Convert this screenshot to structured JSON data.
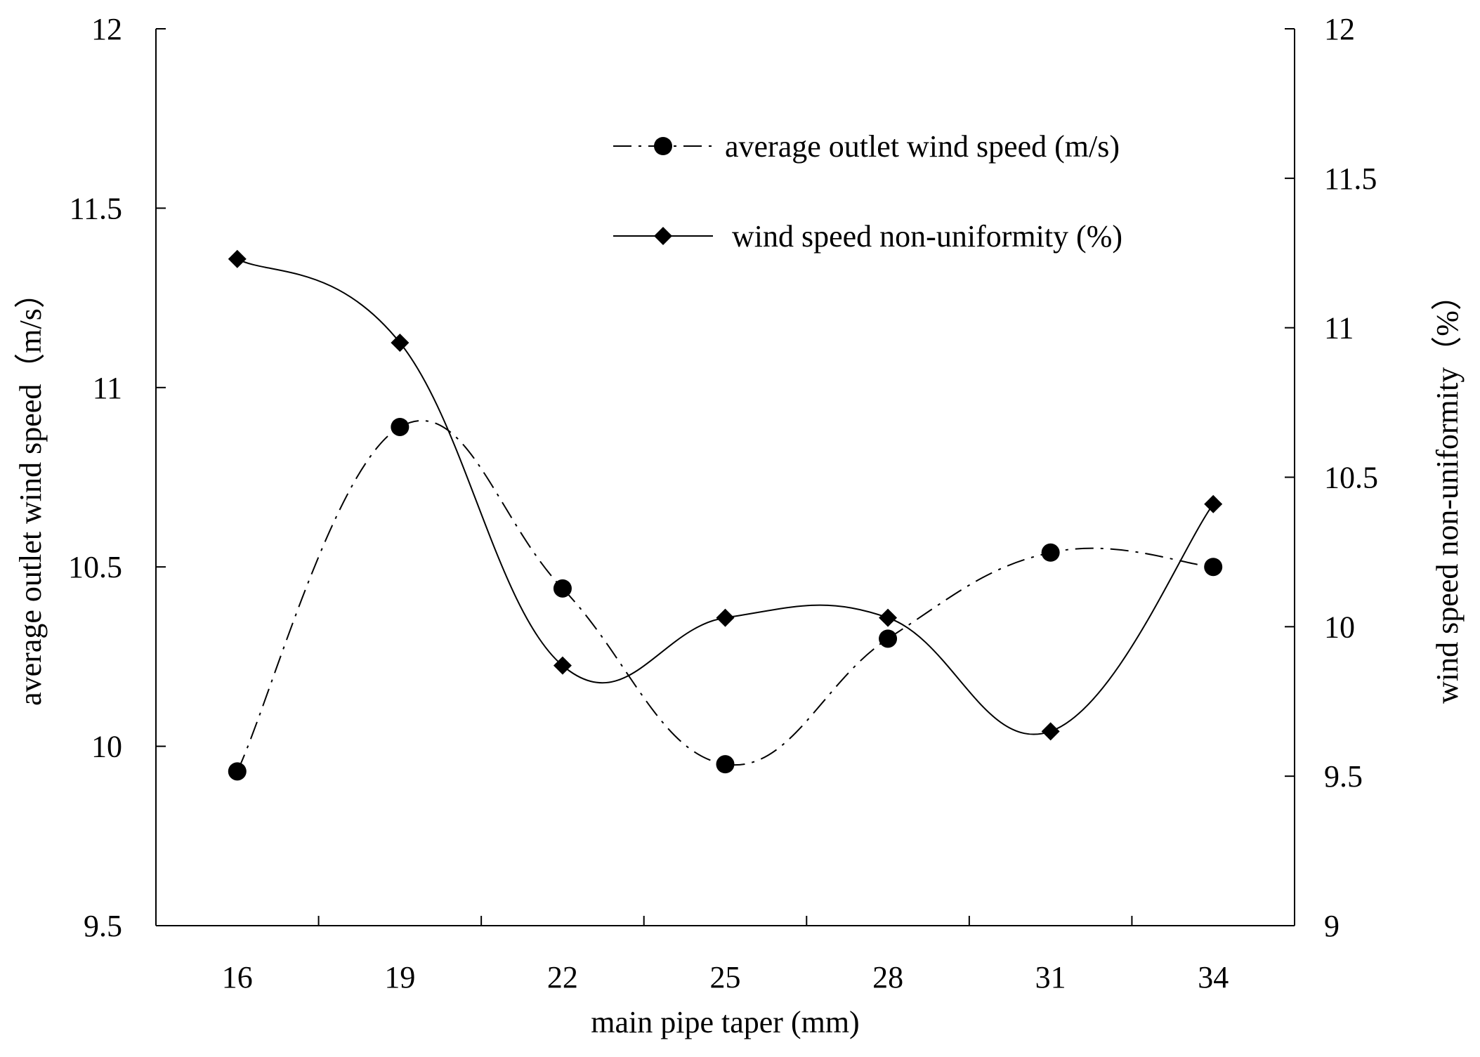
{
  "chart_data": {
    "type": "line",
    "title": "",
    "xlabel": "main pipe taper (mm)",
    "ylabel_left": "average outlet wind speed（m/s）",
    "ylabel_right": "wind speed non-uniformity（%）",
    "x": [
      16,
      19,
      22,
      25,
      28,
      31,
      34
    ],
    "x_tick_labels": [
      "16",
      "19",
      "22",
      "25",
      "28",
      "31",
      "34"
    ],
    "ylim_left": [
      9.5,
      12
    ],
    "ylim_right": [
      9,
      12
    ],
    "y_left_ticks": [
      "9.5",
      "10",
      "10.5",
      "11",
      "11.5",
      "12"
    ],
    "y_right_ticks": [
      "9",
      "9.5",
      "10",
      "10.5",
      "11",
      "11.5",
      "12"
    ],
    "grid": false,
    "legend_position": "top-right",
    "series": [
      {
        "name": "average outlet wind speed (m/s)",
        "axis": "left",
        "marker": "circle",
        "line_style": "dash-dot",
        "color": "#000000",
        "values": [
          9.93,
          10.89,
          10.44,
          9.95,
          10.3,
          10.54,
          10.5
        ]
      },
      {
        "name": "wind speed non-uniformity (%)",
        "axis": "right",
        "marker": "diamond",
        "line_style": "solid",
        "color": "#000000",
        "values": [
          11.23,
          10.95,
          9.87,
          10.03,
          10.03,
          9.65,
          10.41
        ]
      }
    ]
  }
}
